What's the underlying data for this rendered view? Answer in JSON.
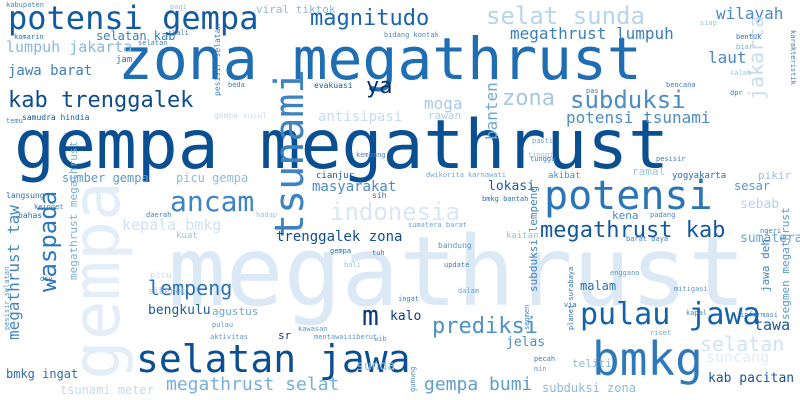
{
  "words": [
    {
      "text": "megathrust",
      "color": "#dbe9f6"
    },
    {
      "text": "gempa megathrust",
      "color": "#0b4f93"
    },
    {
      "text": "zona megathrust",
      "color": "#1f6eb3"
    },
    {
      "text": "potensi gempa",
      "color": "#125aa2"
    },
    {
      "text": "magnitudo",
      "color": "#1a64ac"
    },
    {
      "text": "selat sunda",
      "color": "#b7d4ea"
    },
    {
      "text": "wilayah",
      "color": "#4a8ac4"
    },
    {
      "text": "kab trenggalek",
      "color": "#0d4c8f"
    },
    {
      "text": "tsunami",
      "color": "#3d83c2"
    },
    {
      "text": "gempa",
      "color": "#e4eef8"
    },
    {
      "text": "potensi",
      "color": "#2a74b8"
    },
    {
      "text": "ancam",
      "color": "#3e84c2"
    },
    {
      "text": "indonesia",
      "color": "#d8e7f5"
    },
    {
      "text": "selatan jawa",
      "color": "#0c4e92"
    },
    {
      "text": "bmkg",
      "color": "#2f79bb"
    },
    {
      "text": "pulau jawa",
      "color": "#1462a9"
    },
    {
      "text": "megathrust kab",
      "color": "#14589d"
    },
    {
      "text": "subduksi",
      "color": "#4b8dc6"
    },
    {
      "text": "zona",
      "color": "#a3c8e4"
    },
    {
      "text": "ya",
      "color": "#08306b"
    },
    {
      "text": "m",
      "color": "#0a3c7a"
    },
    {
      "text": "prediksi",
      "color": "#4e90c8"
    },
    {
      "text": "lempeng",
      "color": "#2b72b5"
    },
    {
      "text": "waspada",
      "color": "#2e77b9"
    },
    {
      "text": "megathrust selat",
      "color": "#79afd7"
    },
    {
      "text": "gempa bumi",
      "color": "#5f9dcc"
    },
    {
      "text": "megathrust lumpuh",
      "color": "#3b7fbd"
    },
    {
      "text": "lumpuh jakarta",
      "color": "#8ab8dc"
    },
    {
      "text": "selatan kab",
      "color": "#3a7fbd"
    },
    {
      "text": "viral tiktok",
      "color": "#8bb9dd"
    },
    {
      "text": "laut",
      "color": "#4a86c0"
    },
    {
      "text": "jawa barat",
      "color": "#3c7fbd"
    },
    {
      "text": "potensi tsunami",
      "color": "#4c8dc6"
    },
    {
      "text": "moga",
      "color": "#a7c9e4"
    },
    {
      "text": "banten",
      "color": "#6fa8d4"
    },
    {
      "text": "antisipasi",
      "color": "#c6dcef"
    },
    {
      "text": "rawan",
      "color": "#b0d0ea"
    },
    {
      "text": "sumber gempa",
      "color": "#5c98c9"
    },
    {
      "text": "picu gempa",
      "color": "#8fbadc"
    },
    {
      "text": "masyarakat",
      "color": "#4b8bc4"
    },
    {
      "text": "lokasi",
      "color": "#1f5e9f"
    },
    {
      "text": "kepala bmkg",
      "color": "#cfe1f2"
    },
    {
      "text": "trenggalek zona",
      "color": "#0e4e91"
    },
    {
      "text": "megathrust taw",
      "color": "#4584c0"
    },
    {
      "text": "gempa",
      "color": "#1f6fb3"
    },
    {
      "text": "jakarta",
      "color": "#c7dcef"
    },
    {
      "text": "sesar",
      "color": "#5a96c8"
    },
    {
      "text": "sebab",
      "color": "#b5d1e9"
    },
    {
      "text": "kena",
      "color": "#4a8ac4"
    },
    {
      "text": "sumatera",
      "color": "#6aa5d2"
    },
    {
      "text": "bengkulu",
      "color": "#1e5b9c"
    },
    {
      "text": "agustus",
      "color": "#6ea6d3"
    },
    {
      "text": "kalo",
      "color": "#0d3d7a"
    },
    {
      "text": "jelas",
      "color": "#4d8cc5"
    },
    {
      "text": "malam",
      "color": "#2c6fb0"
    },
    {
      "text": "selatan",
      "color": "#d1e3f3"
    },
    {
      "text": "tawa",
      "color": "#1a5599"
    },
    {
      "text": "sunda",
      "color": "#9ac2e1"
    },
    {
      "text": "bmkg ingat",
      "color": "#2f6eaf"
    },
    {
      "text": "tsunami meter",
      "color": "#c5dbee"
    },
    {
      "text": "megathrust megathrust",
      "color": "#79afd7"
    },
    {
      "text": "subduksi zona",
      "color": "#8fbadc"
    },
    {
      "text": "kab pacitan",
      "color": "#1a5599"
    },
    {
      "text": "suncang",
      "color": "#e1ecf7"
    },
    {
      "text": "jawa deh",
      "color": "#3f80be"
    },
    {
      "text": "segmen megathrust",
      "color": "#5d99c9"
    },
    {
      "text": "subduksi lempeng",
      "color": "#4485c1"
    },
    {
      "text": "samudra hindia",
      "color": "#12589f"
    },
    {
      "text": "evakuasi",
      "color": "#1e5b9c"
    },
    {
      "text": "cianjur",
      "color": "#1a5599"
    },
    {
      "text": "teliti",
      "color": "#8ab8dc"
    },
    {
      "text": "ramal",
      "color": "#9cc5e2"
    },
    {
      "text": "yogyakarta",
      "color": "#2a6db0"
    },
    {
      "text": "akibat",
      "color": "#4d8cc5"
    },
    {
      "text": "pesisir selatan",
      "color": "#3a7fbd"
    },
    {
      "text": "jam",
      "color": "#2a6db0"
    },
    {
      "text": "sumatera barat",
      "color": "#6aa5d2"
    },
    {
      "text": "bandung",
      "color": "#5a96c8"
    },
    {
      "text": "kabupaten",
      "color": "#4a86c0"
    },
    {
      "text": "karakteristik",
      "color": "#3a7fbd"
    },
    {
      "text": "bidang kontak",
      "color": "#4a86c0"
    },
    {
      "text": "ingat",
      "color": "#3a7fbd"
    },
    {
      "text": "dalam",
      "color": "#6ea6d3"
    },
    {
      "text": "riset",
      "color": "#6ea6d3"
    },
    {
      "text": "update",
      "color": "#3a7fbd"
    },
    {
      "text": "pulau",
      "color": "#5a96c8"
    },
    {
      "text": "siberut",
      "color": "#9ac2e1"
    },
    {
      "text": "langsung",
      "color": "#2c6fb0"
    },
    {
      "text": "bahas",
      "color": "#2a6db0"
    },
    {
      "text": "padang",
      "color": "#4a86c0"
    },
    {
      "text": "bentuk",
      "color": "#2c6fb0"
    },
    {
      "text": "biar",
      "color": "#7aafd6"
    },
    {
      "text": "temu",
      "color": "#4a86c0"
    },
    {
      "text": "sr",
      "color": "#0d3d7a"
    },
    {
      "text": "wib",
      "color": "#5a96c8"
    },
    {
      "text": "via",
      "color": "#2c6fb0"
    },
    {
      "text": "pecah",
      "color": "#3a7fbd"
    },
    {
      "text": "min",
      "color": "#6ea6d3"
    },
    {
      "text": "tuh",
      "color": "#3a7fbd"
    },
    {
      "text": "sih",
      "color": "#2c6fb0"
    },
    {
      "text": "bmkg bantah",
      "color": "#2c6fb0"
    },
    {
      "text": "planet surabaya",
      "color": "#2a6db0"
    },
    {
      "text": "mitigasi",
      "color": "#5a96c8"
    },
    {
      "text": "kapal",
      "color": "#4a86c0"
    },
    {
      "text": "informasi",
      "color": "#4a86c0"
    },
    {
      "text": "enggano",
      "color": "#5a96c8"
    },
    {
      "text": "kaitan",
      "color": "#9ac2e1"
    },
    {
      "text": "pikir",
      "color": "#9ac2e1"
    },
    {
      "text": "ngeri",
      "color": "#3a7fbd"
    },
    {
      "text": "pasti",
      "color": "#6ea6d3"
    },
    {
      "text": "kuat",
      "color": "#9ac2e1"
    },
    {
      "text": "picu",
      "color": "#c6dcef"
    },
    {
      "text": "gunung",
      "color": "#4a86c0"
    },
    {
      "text": "daerah",
      "color": "#3a7fbd"
    },
    {
      "text": "kali",
      "color": "#3a7fbd"
    },
    {
      "text": "pagi",
      "color": "#9ac2e1"
    },
    {
      "text": "tinggi",
      "color": "#9ac2e1"
    },
    {
      "text": "tunggu",
      "color": "#3a7fbd"
    },
    {
      "text": "pesisir",
      "color": "#3a7fbd"
    },
    {
      "text": "bencana",
      "color": "#3a7fbd"
    },
    {
      "text": "karnawati",
      "color": "#6ea6d3"
    },
    {
      "text": "dwikorita",
      "color": "#6ea6d3"
    },
    {
      "text": "kawasan",
      "color": "#5a96c8"
    },
    {
      "text": "aktivitas",
      "color": "#5a96c8"
    },
    {
      "text": "bali",
      "color": "#9ac2e1"
    },
    {
      "text": "pas",
      "color": "#3a7fbd"
    },
    {
      "text": "komarin",
      "color": "#2c6fb0"
    },
    {
      "text": "selatan",
      "color": "#3a7fbd"
    },
    {
      "text": "barat daya",
      "color": "#3a7fbd"
    },
    {
      "text": "diy",
      "color": "#3a7fbd"
    },
    {
      "text": "beda",
      "color": "#3a7fbd"
    },
    {
      "text": "kembang",
      "color": "#4a86c0"
    },
    {
      "text": "siap",
      "color": "#9ac2e1"
    },
    {
      "text": "salah",
      "color": "#9ac2e1"
    },
    {
      "text": "dpr",
      "color": "#3a7fbd"
    },
    {
      "text": "hadap",
      "color": "#9ac2e1"
    },
    {
      "text": "keinget",
      "color": "#3a7fbd"
    },
    {
      "text": "mentawaisiberut",
      "color": "#5a96c8"
    },
    {
      "text": "pesisir selatan",
      "color": "#5a96c8"
    },
    {
      "text": "gempa susul",
      "color": "#c6dcef"
    },
    {
      "text": "segmen",
      "color": "#4a86c0"
    }
  ]
}
